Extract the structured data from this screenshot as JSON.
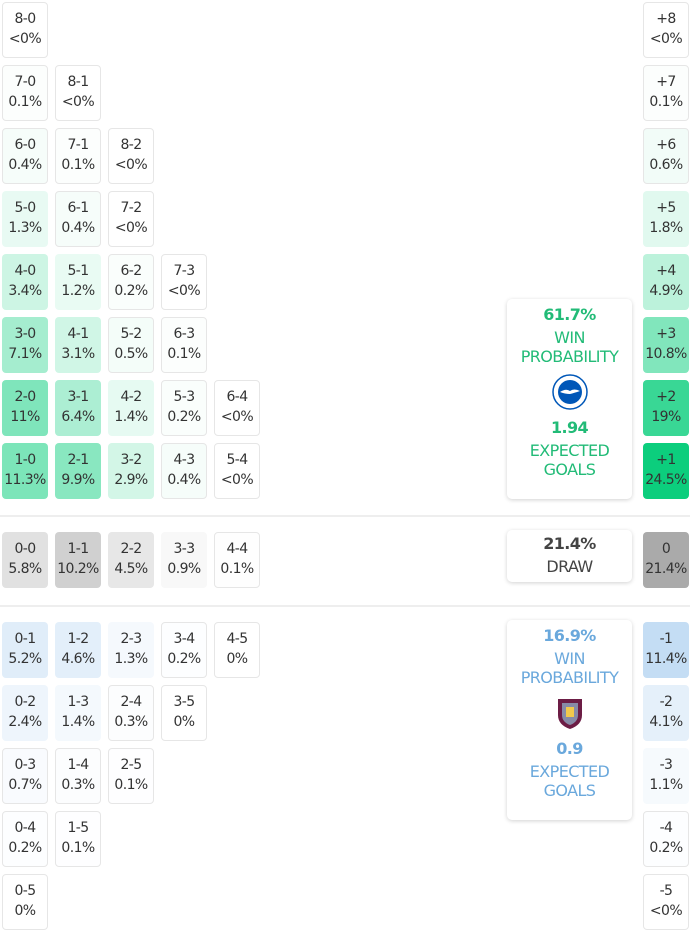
{
  "colors": {
    "home": "#00cc77",
    "draw": "#a8a8a8",
    "away": "#5fa3e0",
    "home_text": "#22bb77",
    "away_text": "#6aa8dc"
  },
  "home": {
    "rows": [
      [
        [
          "8-0",
          "<0%"
        ]
      ],
      [
        [
          "7-0",
          "0.1%"
        ],
        [
          "8-1",
          "<0%"
        ]
      ],
      [
        [
          "6-0",
          "0.4%"
        ],
        [
          "7-1",
          "0.1%"
        ],
        [
          "8-2",
          "<0%"
        ]
      ],
      [
        [
          "5-0",
          "1.3%"
        ],
        [
          "6-1",
          "0.4%"
        ],
        [
          "7-2",
          "<0%"
        ]
      ],
      [
        [
          "4-0",
          "3.4%"
        ],
        [
          "5-1",
          "1.2%"
        ],
        [
          "6-2",
          "0.2%"
        ],
        [
          "7-3",
          "<0%"
        ]
      ],
      [
        [
          "3-0",
          "7.1%"
        ],
        [
          "4-1",
          "3.1%"
        ],
        [
          "5-2",
          "0.5%"
        ],
        [
          "6-3",
          "0.1%"
        ]
      ],
      [
        [
          "2-0",
          "11%"
        ],
        [
          "3-1",
          "6.4%"
        ],
        [
          "4-2",
          "1.4%"
        ],
        [
          "5-3",
          "0.2%"
        ],
        [
          "6-4",
          "<0%"
        ]
      ],
      [
        [
          "1-0",
          "11.3%"
        ],
        [
          "2-1",
          "9.9%"
        ],
        [
          "3-2",
          "2.9%"
        ],
        [
          "4-3",
          "0.4%"
        ],
        [
          "5-4",
          "<0%"
        ]
      ]
    ],
    "margins": [
      [
        "+8",
        "<0%"
      ],
      [
        "+7",
        "0.1%"
      ],
      [
        "+6",
        "0.6%"
      ],
      [
        "+5",
        "1.8%"
      ],
      [
        "+4",
        "4.9%"
      ],
      [
        "+3",
        "10.8%"
      ],
      [
        "+2",
        "19%"
      ],
      [
        "+1",
        "24.5%"
      ]
    ],
    "card": {
      "win_pct": "61.7%",
      "win_label_1": "WIN",
      "win_label_2": "PROBABILITY",
      "xg": "1.94",
      "xg_label_1": "EXPECTED",
      "xg_label_2": "GOALS",
      "logo": "brighton-crest"
    }
  },
  "draw": {
    "rows": [
      [
        [
          "0-0",
          "5.8%"
        ],
        [
          "1-1",
          "10.2%"
        ],
        [
          "2-2",
          "4.5%"
        ],
        [
          "3-3",
          "0.9%"
        ],
        [
          "4-4",
          "0.1%"
        ]
      ]
    ],
    "margins": [
      [
        "0",
        "21.4%"
      ]
    ],
    "card": {
      "pct": "21.4%",
      "label": "DRAW"
    }
  },
  "away": {
    "rows": [
      [
        [
          "0-1",
          "5.2%"
        ],
        [
          "1-2",
          "4.6%"
        ],
        [
          "2-3",
          "1.3%"
        ],
        [
          "3-4",
          "0.2%"
        ],
        [
          "4-5",
          "0%"
        ]
      ],
      [
        [
          "0-2",
          "2.4%"
        ],
        [
          "1-3",
          "1.4%"
        ],
        [
          "2-4",
          "0.3%"
        ],
        [
          "3-5",
          "0%"
        ]
      ],
      [
        [
          "0-3",
          "0.7%"
        ],
        [
          "1-4",
          "0.3%"
        ],
        [
          "2-5",
          "0.1%"
        ]
      ],
      [
        [
          "0-4",
          "0.2%"
        ],
        [
          "1-5",
          "0.1%"
        ]
      ],
      [
        [
          "0-5",
          "0%"
        ]
      ]
    ],
    "margins": [
      [
        "-1",
        "11.4%"
      ],
      [
        "-2",
        "4.1%"
      ],
      [
        "-3",
        "1.1%"
      ],
      [
        "-4",
        "0.2%"
      ],
      [
        "-5",
        "<0%"
      ]
    ],
    "card": {
      "win_pct": "16.9%",
      "win_label_1": "WIN",
      "win_label_2": "PROBABILITY",
      "xg": "0.9",
      "xg_label_1": "EXPECTED",
      "xg_label_2": "GOALS",
      "logo": "burnley-crest"
    }
  }
}
